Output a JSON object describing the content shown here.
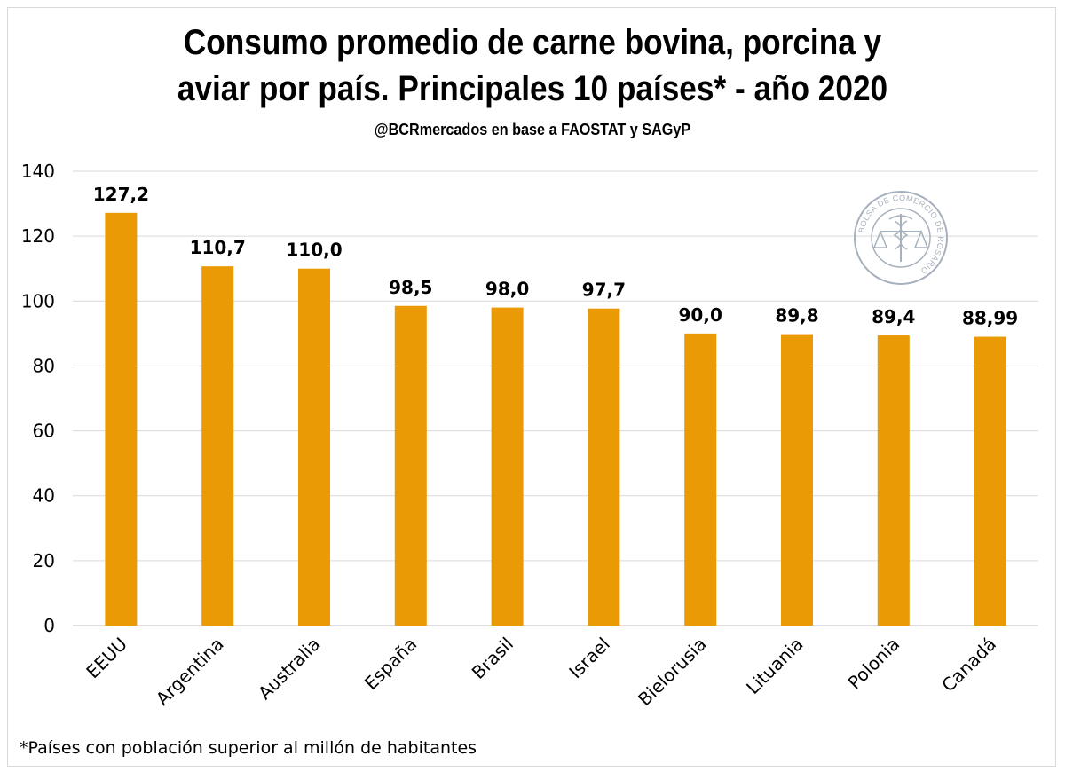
{
  "chart_data": {
    "type": "bar",
    "title_line1": "Consumo promedio de carne bovina, porcina y",
    "title_line2": "aviar por país. Principales 10 países* - año 2020",
    "subtitle": "@BCRmercados en base a FAOSTAT y SAGyP",
    "categories": [
      "EEUU",
      "Argentina",
      "Australia",
      "España",
      "Brasil",
      "Israel",
      "Bielorusia",
      "Lituania",
      "Polonia",
      "Canadá"
    ],
    "values": [
      127.2,
      110.7,
      110.0,
      98.5,
      98.0,
      97.7,
      90.0,
      89.8,
      89.4,
      88.99
    ],
    "data_labels": [
      "127,2",
      "110,7",
      "110,0",
      "98,5",
      "98,0",
      "97,7",
      "90,0",
      "89,8",
      "89,4",
      "88,99"
    ],
    "yticks": [
      0,
      20,
      40,
      60,
      80,
      100,
      120,
      140
    ],
    "ylim": [
      0,
      140
    ],
    "grid": true,
    "bar_color": "#E99A04",
    "footnote": "*Países con población superior al millón de habitantes"
  },
  "seal": {
    "text": "BOLSA DE COMERCIO DE ROSARIO",
    "icon": "caduceus-scales-seal-icon"
  }
}
